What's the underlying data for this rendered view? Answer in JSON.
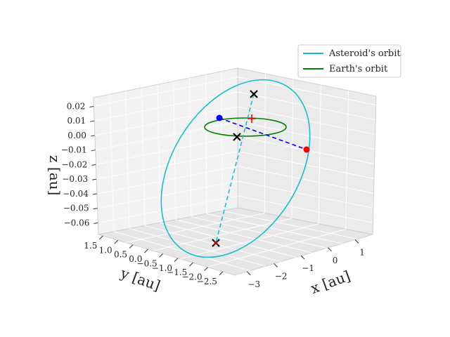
{
  "chart_data": {
    "type": "line",
    "projection": "3d",
    "title": "",
    "xlabel": "x [au]",
    "ylabel": "y [au]",
    "zlabel": "z [au]",
    "xlim": [
      -3.2,
      1.4
    ],
    "ylim": [
      -2.7,
      1.6
    ],
    "zlim": [
      -0.062,
      0.027
    ],
    "x_ticks": [
      "−3",
      "−2",
      "−1",
      "0",
      "1"
    ],
    "y_ticks": [
      "1.5",
      "1.0",
      "0.5",
      "0.0",
      "−0.5",
      "−1.0",
      "−1.5",
      "−2.0",
      "−2.5"
    ],
    "z_ticks": [
      "0.02",
      "0.01",
      "0.00",
      "−0.01",
      "−0.02",
      "−0.03",
      "−0.04",
      "−0.05",
      "−0.06"
    ],
    "grid": true,
    "legend_position": "upper right",
    "series": [
      {
        "name": "Asteroid's orbit",
        "color": "#17becf",
        "style": "solid",
        "shape": "ellipse",
        "semi_major_axis_au": 1.8,
        "eccentricity": 0.55,
        "inclination_deg": 6,
        "focus": [
          0,
          0,
          0
        ]
      },
      {
        "name": "Earth's orbit",
        "color": "#008000",
        "style": "solid",
        "shape": "circle",
        "radius_au": 1.0,
        "z": 0.0
      }
    ],
    "annotations": [
      {
        "label": "sun",
        "type": "plus",
        "color": "#ff0000",
        "x": 0.0,
        "y": 0.0,
        "z": 0.0
      },
      {
        "label": "perihelion",
        "type": "x-marker",
        "color": "#000000",
        "x": 0.2,
        "y": 1.1,
        "z": 0.018
      },
      {
        "label": "aphelion",
        "type": "x-marker",
        "color": "#000000",
        "x": -1.4,
        "y": -2.6,
        "z": -0.058
      },
      {
        "label": "node-1",
        "type": "x-marker",
        "color": "#000000",
        "x": -0.1,
        "y": 0.15,
        "z": 0.0
      },
      {
        "label": "line-of-apsides",
        "type": "dashed-line",
        "color": "#17becf"
      },
      {
        "label": "line-of-nodes",
        "type": "dashed-line",
        "color": "#0000ff"
      },
      {
        "label": "node-blue",
        "type": "dot",
        "color": "#0000ff",
        "x": -0.6,
        "y": 0.9,
        "z": 0.0
      },
      {
        "label": "node-red",
        "type": "dot",
        "color": "#ff0000",
        "x": 0.9,
        "y": -0.6,
        "z": 0.0
      }
    ]
  }
}
